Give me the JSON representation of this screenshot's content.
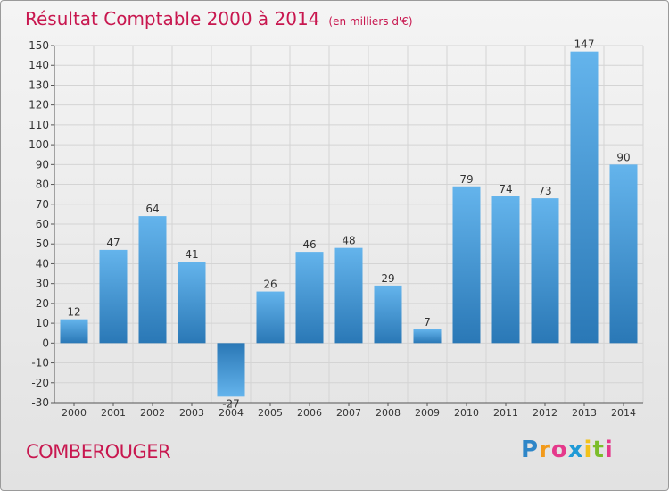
{
  "header": {
    "title": "Résultat Comptable 2000 à 2014",
    "unit": "(en milliers d'€)"
  },
  "commune": "COMBEROUGER",
  "brand": {
    "letters": [
      "P",
      "r",
      "o",
      "x",
      "i",
      "t",
      "i"
    ],
    "colors": [
      "#2e86c8",
      "#f29a1b",
      "#e5398b",
      "#1f9ad6",
      "#f2c21b",
      "#7cbd2a",
      "#e5398b"
    ]
  },
  "colors": {
    "accent": "#c8174f",
    "bar_top": "#64b4ec",
    "bar_bottom": "#2a78b6",
    "axis": "#555555",
    "grid": "#d4d4d4"
  },
  "chart_data": {
    "type": "bar",
    "categories": [
      "2000",
      "2001",
      "2002",
      "2003",
      "2004",
      "2005",
      "2006",
      "2007",
      "2008",
      "2009",
      "2010",
      "2011",
      "2012",
      "2013",
      "2014"
    ],
    "values": [
      12,
      47,
      64,
      41,
      -27,
      26,
      46,
      48,
      29,
      7,
      79,
      74,
      73,
      147,
      90
    ],
    "ylim": [
      -30,
      150
    ],
    "yticks": [
      -30,
      -20,
      -10,
      0,
      10,
      20,
      30,
      40,
      50,
      60,
      70,
      80,
      90,
      100,
      110,
      120,
      130,
      140,
      150
    ],
    "grid": true,
    "title": "Résultat Comptable 2000 à 2014",
    "xlabel": "",
    "ylabel": ""
  }
}
